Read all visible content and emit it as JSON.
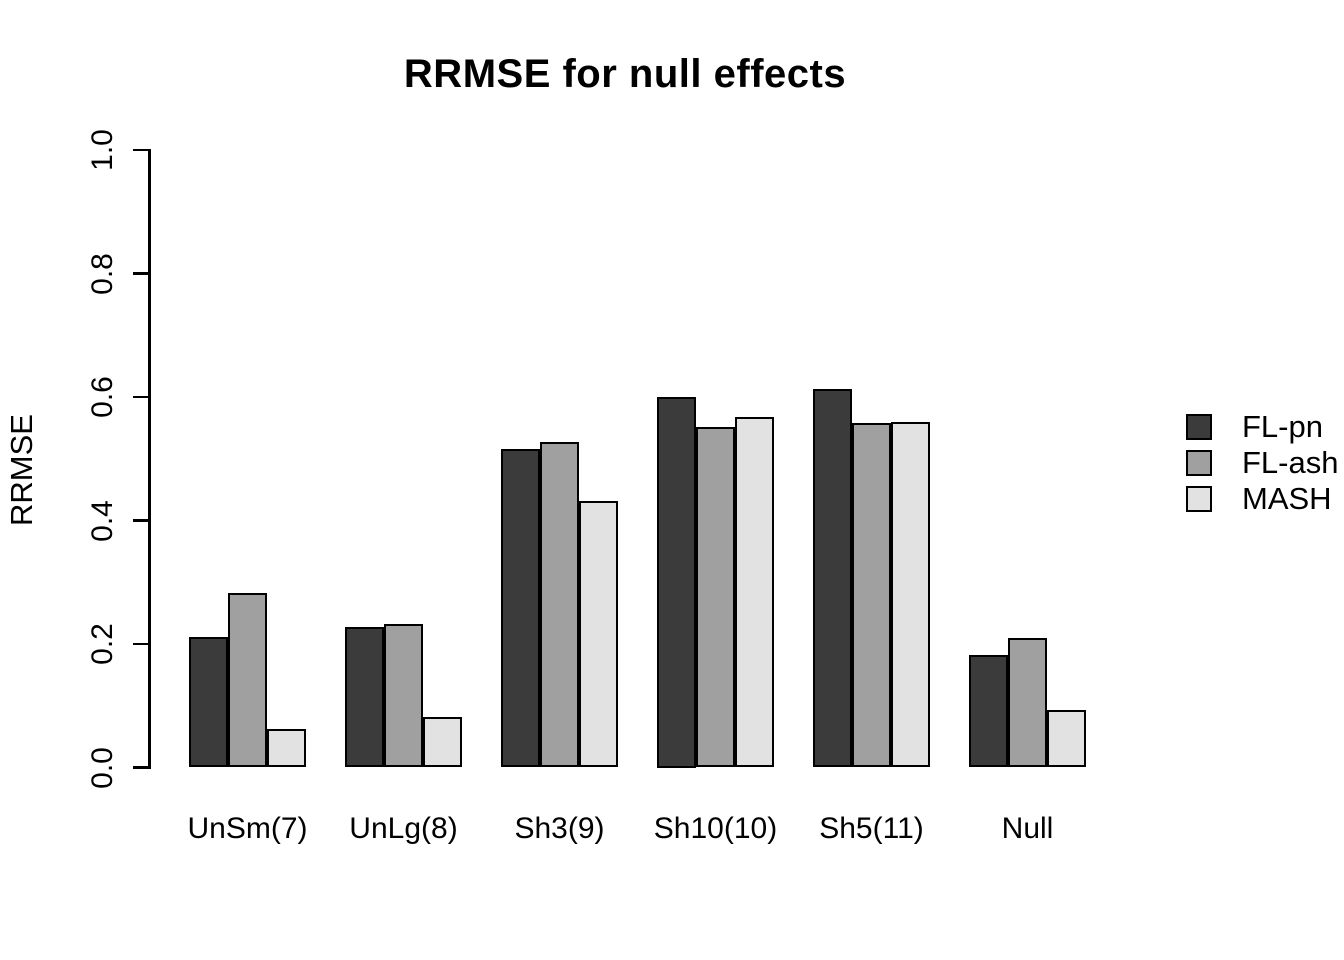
{
  "figure": {
    "title": "RRMSE for null effects",
    "ylabel": "RRMSE"
  },
  "chart_data": {
    "type": "bar",
    "title": "RRMSE for null effects",
    "xlabel": "",
    "ylabel": "RRMSE",
    "ylim": [
      0.0,
      1.0
    ],
    "yticks": [
      0.0,
      0.2,
      0.4,
      0.6,
      0.8,
      1.0
    ],
    "ytick_labels": [
      "0.0",
      "0.2",
      "0.4",
      "0.6",
      "0.8",
      "1.0"
    ],
    "grid": false,
    "legend_position": "right-outside",
    "categories": [
      "UnSm(7)",
      "UnLg(8)",
      "Sh3(9)",
      "Sh10(10)",
      "Sh5(11)",
      "Null"
    ],
    "series": [
      {
        "name": "FL-pn",
        "color": "#3B3B3B",
        "values": [
          0.212,
          0.227,
          0.515,
          0.6,
          0.613,
          0.182
        ]
      },
      {
        "name": "FL-ash",
        "color": "#A0A0A0",
        "values": [
          0.283,
          0.232,
          0.527,
          0.551,
          0.558,
          0.209
        ]
      },
      {
        "name": "MASH",
        "color": "#E2E2E2",
        "values": [
          0.062,
          0.082,
          0.431,
          0.568,
          0.56,
          0.093
        ]
      }
    ],
    "bar_border_color": "#000000",
    "axis_color": "#000000",
    "background_color": "#FFFFFF"
  }
}
